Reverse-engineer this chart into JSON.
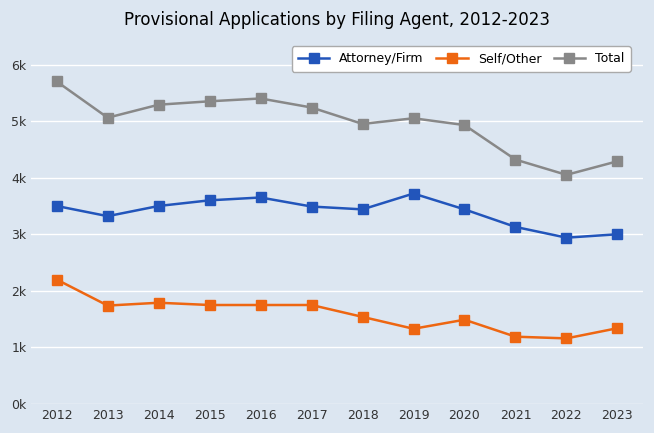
{
  "title": "Provisional Applications by Filing Agent, 2012-2023",
  "years": [
    2012,
    2013,
    2014,
    2015,
    2016,
    2017,
    2018,
    2019,
    2020,
    2021,
    2022,
    2023
  ],
  "attorney": [
    3500,
    3320,
    3500,
    3600,
    3650,
    3490,
    3440,
    3720,
    3440,
    3130,
    2940,
    3000
  ],
  "self_other": [
    2200,
    1740,
    1790,
    1750,
    1750,
    1750,
    1540,
    1330,
    1490,
    1190,
    1160,
    1340
  ],
  "total": [
    5700,
    5060,
    5290,
    5350,
    5400,
    5240,
    4950,
    5050,
    4930,
    4320,
    4050,
    4290
  ],
  "attorney_color": "#2255bb",
  "self_other_color": "#ee6611",
  "total_color": "#888888",
  "background_color": "#dce6f1",
  "plot_bg_color": "#dce6f1",
  "grid_color": "#ffffff",
  "ylim": [
    0,
    6500
  ],
  "yticks": [
    0,
    1000,
    2000,
    3000,
    4000,
    5000,
    6000
  ],
  "ytick_labels": [
    "0k",
    "1k",
    "2k",
    "3k",
    "4k",
    "5k",
    "6k"
  ],
  "legend_labels": [
    "Attorney/Firm",
    "Self/Other",
    "Total"
  ],
  "marker": "s",
  "linewidth": 1.8,
  "markersize": 7,
  "title_fontsize": 12
}
